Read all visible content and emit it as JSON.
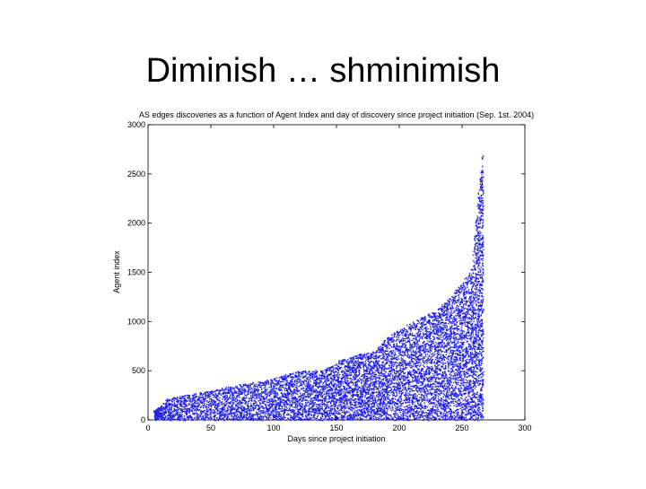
{
  "slide": {
    "title": "Diminish … shminimish"
  },
  "chart_data": {
    "type": "scatter",
    "title": "AS edges discoveries as a function of Agent Index and day of discovery since project initiation (Sep. 1st. 2004)",
    "xlabel": "Days since project initiation",
    "ylabel": "Agent index",
    "xlim": [
      0,
      300
    ],
    "ylim": [
      0,
      3000
    ],
    "xticks": [
      0,
      50,
      100,
      150,
      200,
      250,
      300
    ],
    "yticks": [
      0,
      500,
      1000,
      1500,
      2000,
      2500,
      3000
    ],
    "grid": false,
    "legend": "none",
    "marker_color": "#1f1fe6",
    "series": [
      {
        "agent_frontier_x": [
          5,
          10,
          15,
          20,
          30,
          40,
          50,
          60,
          70,
          80,
          90,
          100,
          110,
          120,
          130,
          140,
          150,
          160,
          170,
          180,
          190,
          200,
          210,
          220,
          230,
          240,
          250,
          255,
          258,
          262,
          265,
          266
        ],
        "agent_frontier_y": [
          100,
          150,
          220,
          240,
          260,
          280,
          300,
          330,
          360,
          380,
          400,
          430,
          470,
          500,
          510,
          520,
          600,
          640,
          680,
          700,
          850,
          920,
          1000,
          1060,
          1130,
          1250,
          1400,
          1500,
          1560,
          2200,
          2600,
          2700
        ]
      }
    ]
  }
}
